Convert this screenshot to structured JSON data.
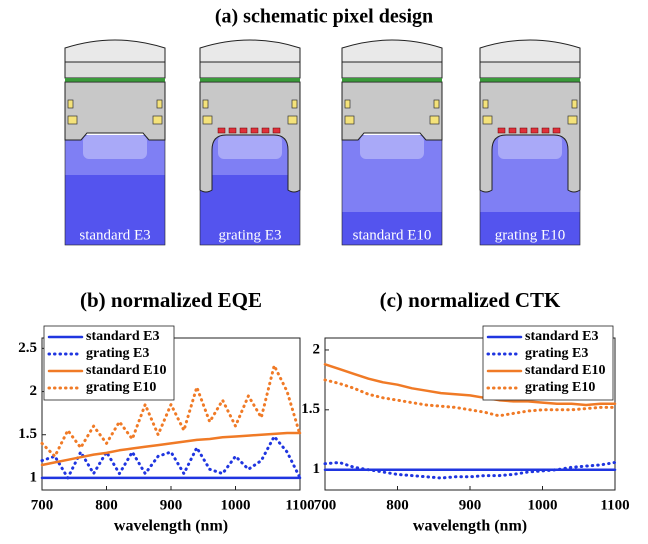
{
  "header": {
    "title": "(a) schematic pixel design"
  },
  "pixels": [
    {
      "label": "standard E3"
    },
    {
      "label": "grating E3"
    },
    {
      "label": "standard E10"
    },
    {
      "label": "grating E10"
    }
  ],
  "chart_data": [
    {
      "type": "line",
      "title": "(b) normalized EQE",
      "x_label": "wavelength (nm)",
      "x": [
        700,
        720,
        740,
        760,
        780,
        800,
        820,
        840,
        860,
        880,
        900,
        920,
        940,
        960,
        980,
        1000,
        1020,
        1040,
        1060,
        1080,
        1100
      ],
      "xlim": [
        700,
        1100
      ],
      "xticks": [
        700,
        800,
        900,
        1000,
        1100
      ],
      "ylim": [
        0.86,
        2.62
      ],
      "yticks": [
        1,
        1.5,
        2,
        2.5
      ],
      "legend": "upper left",
      "series": [
        {
          "name": "standard E3",
          "color": "#1f35e0",
          "style": "solid",
          "values": [
            1,
            1,
            1,
            1,
            1,
            1,
            1,
            1,
            1,
            1,
            1,
            1,
            1,
            1,
            1,
            1,
            1,
            1,
            1,
            1,
            1
          ]
        },
        {
          "name": "grating E3",
          "color": "#1f35e0",
          "style": "dotted",
          "values": [
            1.2,
            1.25,
            1.0,
            1.3,
            1.05,
            1.3,
            1.05,
            1.3,
            1.05,
            1.25,
            1.3,
            1.05,
            1.35,
            1.1,
            1.05,
            1.25,
            1.1,
            1.2,
            1.48,
            1.3,
            1.0
          ]
        },
        {
          "name": "standard E10",
          "color": "#f07a26",
          "style": "solid",
          "values": [
            1.15,
            1.18,
            1.21,
            1.24,
            1.27,
            1.29,
            1.32,
            1.34,
            1.36,
            1.38,
            1.4,
            1.42,
            1.44,
            1.45,
            1.47,
            1.48,
            1.49,
            1.5,
            1.51,
            1.52,
            1.52
          ]
        },
        {
          "name": "grating E10",
          "color": "#f07a26",
          "style": "dotted",
          "values": [
            1.4,
            1.25,
            1.55,
            1.35,
            1.6,
            1.4,
            1.65,
            1.45,
            1.85,
            1.5,
            1.85,
            1.55,
            2.05,
            1.65,
            1.9,
            1.6,
            1.95,
            1.7,
            2.3,
            2.0,
            1.5
          ]
        }
      ]
    },
    {
      "type": "line",
      "title": "(c) normalized CTK",
      "x_label": "wavelength (nm)",
      "x": [
        700,
        720,
        740,
        760,
        780,
        800,
        820,
        840,
        860,
        880,
        900,
        920,
        940,
        960,
        980,
        1000,
        1020,
        1040,
        1060,
        1080,
        1100
      ],
      "xlim": [
        700,
        1100
      ],
      "xticks": [
        700,
        800,
        900,
        1000,
        1100
      ],
      "ylim": [
        0.83,
        2.1
      ],
      "yticks": [
        1,
        1.5,
        2
      ],
      "legend": "upper right",
      "series": [
        {
          "name": "standard E3",
          "color": "#1f35e0",
          "style": "solid",
          "values": [
            1,
            1,
            1,
            1,
            1,
            1,
            1,
            1,
            1,
            1,
            1,
            1,
            1,
            1,
            1,
            1,
            1,
            1,
            1,
            1,
            1
          ]
        },
        {
          "name": "grating E3",
          "color": "#1f35e0",
          "style": "dotted",
          "values": [
            1.05,
            1.06,
            1.02,
            1.0,
            0.98,
            0.96,
            0.95,
            0.94,
            0.93,
            0.94,
            0.94,
            0.95,
            0.95,
            0.96,
            0.98,
            0.99,
            1.0,
            1.02,
            1.03,
            1.04,
            1.06
          ]
        },
        {
          "name": "standard E10",
          "color": "#f07a26",
          "style": "solid",
          "values": [
            1.88,
            1.84,
            1.8,
            1.76,
            1.73,
            1.71,
            1.68,
            1.66,
            1.64,
            1.63,
            1.62,
            1.6,
            1.58,
            1.57,
            1.57,
            1.56,
            1.55,
            1.55,
            1.54,
            1.55,
            1.55
          ]
        },
        {
          "name": "grating E10",
          "color": "#f07a26",
          "style": "dotted",
          "values": [
            1.75,
            1.72,
            1.68,
            1.63,
            1.6,
            1.58,
            1.56,
            1.54,
            1.53,
            1.52,
            1.5,
            1.48,
            1.45,
            1.47,
            1.49,
            1.5,
            1.5,
            1.5,
            1.51,
            1.52,
            1.52
          ]
        }
      ]
    }
  ]
}
